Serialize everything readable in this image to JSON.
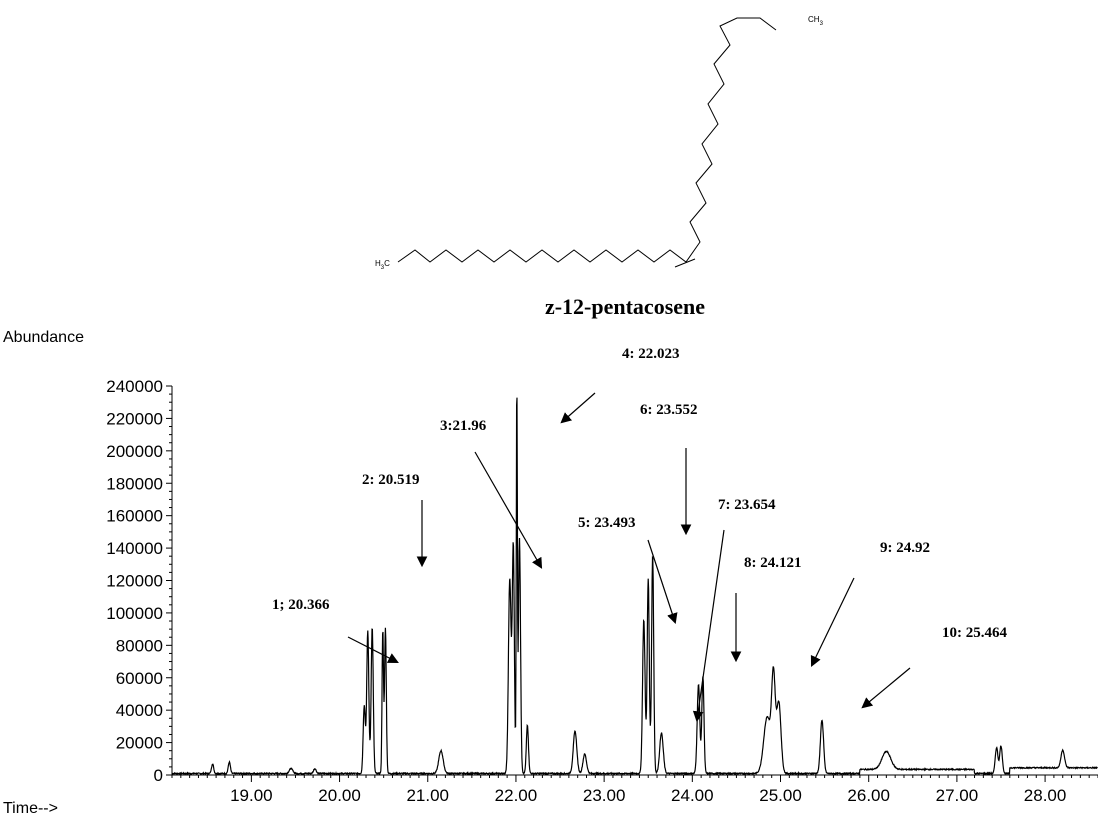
{
  "molecule": {
    "name": "z-12-pentacosene",
    "label_left": "H",
    "label_left_sub": "3",
    "label_left_suffix": "C",
    "label_right": "CH",
    "label_right_sub": "3"
  },
  "chart_data": {
    "type": "line",
    "ylabel": "Abundance",
    "xlabel": "Time-->",
    "xlim": [
      18.1,
      28.6
    ],
    "ylim": [
      0,
      240000
    ],
    "x_ticks": [
      "19.00",
      "20.00",
      "21.00",
      "22.00",
      "23.00",
      "24.00",
      "25.00",
      "26.00",
      "27.00",
      "28.00"
    ],
    "x_tick_values": [
      19,
      20,
      21,
      22,
      23,
      24,
      25,
      26,
      27,
      28
    ],
    "y_ticks": [
      "0",
      "20000",
      "40000",
      "60000",
      "80000",
      "100000",
      "120000",
      "140000",
      "160000",
      "180000",
      "200000",
      "220000",
      "240000"
    ],
    "y_tick_values": [
      0,
      20000,
      40000,
      60000,
      80000,
      100000,
      120000,
      140000,
      160000,
      180000,
      200000,
      220000,
      240000
    ],
    "peaks": [
      {
        "x": 18.56,
        "y": 6000,
        "w": 0.012
      },
      {
        "x": 18.75,
        "y": 7000,
        "w": 0.012
      },
      {
        "x": 19.45,
        "y": 3000,
        "w": 0.02
      },
      {
        "x": 19.72,
        "y": 3000,
        "w": 0.015
      },
      {
        "x": 20.28,
        "y": 42000,
        "w": 0.012
      },
      {
        "x": 20.32,
        "y": 88000,
        "w": 0.012
      },
      {
        "x": 20.37,
        "y": 90000,
        "w": 0.012
      },
      {
        "x": 20.49,
        "y": 88000,
        "w": 0.008
      },
      {
        "x": 20.52,
        "y": 90000,
        "w": 0.01
      },
      {
        "x": 21.15,
        "y": 14000,
        "w": 0.025
      },
      {
        "x": 21.93,
        "y": 120000,
        "w": 0.015
      },
      {
        "x": 21.97,
        "y": 140000,
        "w": 0.012
      },
      {
        "x": 22.01,
        "y": 235000,
        "w": 0.006
      },
      {
        "x": 22.04,
        "y": 145000,
        "w": 0.012
      },
      {
        "x": 22.13,
        "y": 30000,
        "w": 0.012
      },
      {
        "x": 22.67,
        "y": 26000,
        "w": 0.02
      },
      {
        "x": 22.78,
        "y": 12000,
        "w": 0.02
      },
      {
        "x": 23.45,
        "y": 95000,
        "w": 0.014
      },
      {
        "x": 23.5,
        "y": 120000,
        "w": 0.012
      },
      {
        "x": 23.55,
        "y": 135000,
        "w": 0.012
      },
      {
        "x": 23.65,
        "y": 25000,
        "w": 0.02
      },
      {
        "x": 24.07,
        "y": 55000,
        "w": 0.015
      },
      {
        "x": 24.12,
        "y": 60000,
        "w": 0.012
      },
      {
        "x": 24.85,
        "y": 35000,
        "w": 0.04
      },
      {
        "x": 24.92,
        "y": 56000,
        "w": 0.02
      },
      {
        "x": 24.98,
        "y": 44000,
        "w": 0.025
      },
      {
        "x": 25.47,
        "y": 33000,
        "w": 0.018
      },
      {
        "x": 26.2,
        "y": 11000,
        "w": 0.05
      },
      {
        "x": 27.45,
        "y": 16000,
        "w": 0.015
      },
      {
        "x": 27.5,
        "y": 17000,
        "w": 0.015
      },
      {
        "x": 28.2,
        "y": 11000,
        "w": 0.02
      }
    ],
    "annotations": [
      {
        "label": "1; 20.366"
      },
      {
        "label": "2: 20.519"
      },
      {
        "label": "3:21.96"
      },
      {
        "label": "4: 22.023"
      },
      {
        "label": "5: 23.493"
      },
      {
        "label": "6: 23.552"
      },
      {
        "label": "7: 23.654"
      },
      {
        "label": "8: 24.121"
      },
      {
        "label": "9: 24.92"
      },
      {
        "label": "10: 25.464"
      }
    ]
  }
}
